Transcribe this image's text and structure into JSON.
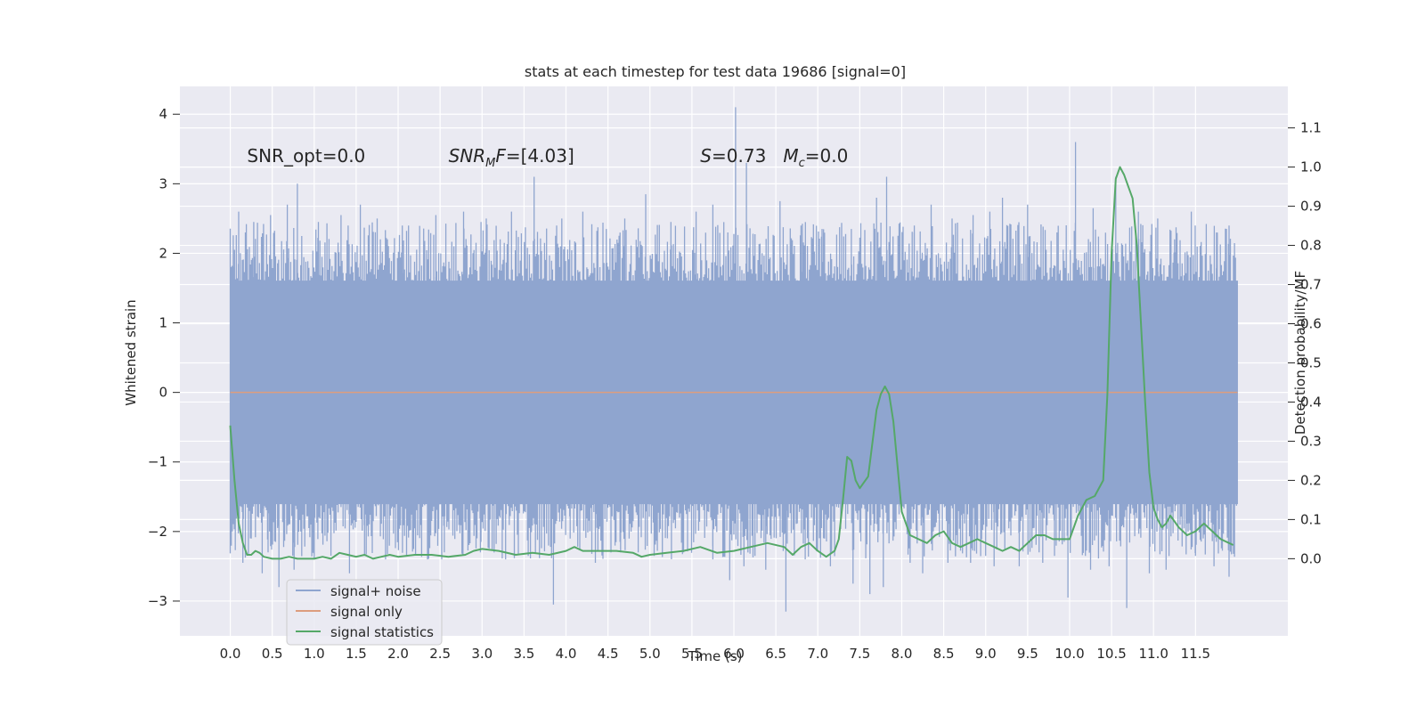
{
  "chart_data": {
    "type": "line",
    "title": "stats at each timestep for test data 19686 [signal=0]",
    "xlabel": "Time (s)",
    "ylabel_left": "Whitened strain",
    "ylabel_right": "Detection probability/MF",
    "xlim": [
      -0.6,
      12.6
    ],
    "ylim_left": [
      -3.5,
      4.4
    ],
    "ylim_right": [
      -0.197,
      1.206
    ],
    "x_ticks": [
      0.0,
      0.5,
      1.0,
      1.5,
      2.0,
      2.5,
      3.0,
      3.5,
      4.0,
      4.5,
      5.0,
      5.5,
      6.0,
      6.5,
      7.0,
      7.5,
      8.0,
      8.5,
      9.0,
      9.5,
      10.0,
      10.5,
      11.0,
      11.5
    ],
    "x_tick_labels": [
      "0.0",
      "0.5",
      "1.0",
      "1.5",
      "2.0",
      "2.5",
      "3.0",
      "3.5",
      "4.0",
      "4.5",
      "5.0",
      "5.5",
      "6.0",
      "6.5",
      "7.0",
      "7.5",
      "8.0",
      "8.5",
      "9.0",
      "9.5",
      "10.0",
      "10.5",
      "11.0",
      "11.5"
    ],
    "y_left_ticks": [
      -3,
      -2,
      -1,
      0,
      1,
      2,
      3,
      4
    ],
    "y_left_tick_labels": [
      "−3",
      "−2",
      "−1",
      "0",
      "1",
      "2",
      "3",
      "4"
    ],
    "y_right_ticks": [
      0.0,
      0.1,
      0.2,
      0.3,
      0.4,
      0.5,
      0.6,
      0.7,
      0.8,
      0.9,
      1.0,
      1.1
    ],
    "y_right_tick_labels": [
      "0.0",
      "0.1",
      "0.2",
      "0.3",
      "0.4",
      "0.5",
      "0.6",
      "0.7",
      "0.8",
      "0.9",
      "1.0",
      "1.1"
    ],
    "grid": true,
    "legend_position": "lower-left",
    "annotations": [
      {
        "text": "SNR_opt=0.0",
        "x": 0.2,
        "y": 3.4
      },
      {
        "text": "SNR_MF=[4.03]",
        "x": 2.6,
        "y": 3.4
      },
      {
        "text": "S=0.73   M_c=0.0",
        "x": 5.6,
        "y": 3.4
      }
    ],
    "series": [
      {
        "name": "signal+ noise",
        "axis": "left",
        "color": "#8fa5cf",
        "x_range": [
          0.0,
          12.0
        ],
        "band_low": -1.6,
        "band_high": 1.6,
        "peaks": [
          {
            "x": 0.05,
            "y": 2.05
          },
          {
            "x": 0.1,
            "y": 2.6
          },
          {
            "x": 0.18,
            "y": 2.3
          },
          {
            "x": 0.28,
            "y": 2.45
          },
          {
            "x": 0.48,
            "y": 2.55
          },
          {
            "x": 0.68,
            "y": 2.7
          },
          {
            "x": 0.8,
            "y": 3.0
          },
          {
            "x": 1.05,
            "y": 2.45
          },
          {
            "x": 1.32,
            "y": 2.55
          },
          {
            "x": 1.55,
            "y": 2.7
          },
          {
            "x": 1.75,
            "y": 2.5
          },
          {
            "x": 2.05,
            "y": 2.4
          },
          {
            "x": 2.45,
            "y": 2.55
          },
          {
            "x": 2.78,
            "y": 2.6
          },
          {
            "x": 3.05,
            "y": 2.5
          },
          {
            "x": 3.35,
            "y": 2.6
          },
          {
            "x": 3.62,
            "y": 3.1
          },
          {
            "x": 3.95,
            "y": 2.5
          },
          {
            "x": 4.2,
            "y": 2.6
          },
          {
            "x": 4.48,
            "y": 2.35
          },
          {
            "x": 4.7,
            "y": 2.5
          },
          {
            "x": 4.95,
            "y": 2.85
          },
          {
            "x": 5.25,
            "y": 2.45
          },
          {
            "x": 5.55,
            "y": 2.6
          },
          {
            "x": 5.75,
            "y": 2.7
          },
          {
            "x": 6.02,
            "y": 4.1
          },
          {
            "x": 6.15,
            "y": 3.3
          },
          {
            "x": 6.55,
            "y": 2.75
          },
          {
            "x": 6.8,
            "y": 2.4
          },
          {
            "x": 7.05,
            "y": 2.35
          },
          {
            "x": 7.4,
            "y": 2.35
          },
          {
            "x": 7.7,
            "y": 2.8
          },
          {
            "x": 7.82,
            "y": 3.1
          },
          {
            "x": 8.15,
            "y": 2.4
          },
          {
            "x": 8.35,
            "y": 2.7
          },
          {
            "x": 8.6,
            "y": 2.5
          },
          {
            "x": 8.85,
            "y": 2.55
          },
          {
            "x": 9.05,
            "y": 2.6
          },
          {
            "x": 9.2,
            "y": 2.8
          },
          {
            "x": 9.5,
            "y": 2.7
          },
          {
            "x": 9.85,
            "y": 2.3
          },
          {
            "x": 10.07,
            "y": 3.6
          },
          {
            "x": 10.28,
            "y": 2.65
          },
          {
            "x": 10.55,
            "y": 3.1
          },
          {
            "x": 10.82,
            "y": 2.6
          },
          {
            "x": 11.05,
            "y": 2.5
          },
          {
            "x": 11.25,
            "y": 2.2
          },
          {
            "x": 11.45,
            "y": 2.6
          },
          {
            "x": 11.75,
            "y": 2.3
          },
          {
            "x": 11.9,
            "y": 2.4
          }
        ],
        "troughs": [
          {
            "x": 0.15,
            "y": -2.45
          },
          {
            "x": 0.25,
            "y": -2.1
          },
          {
            "x": 0.38,
            "y": -2.6
          },
          {
            "x": 0.45,
            "y": -2.3
          },
          {
            "x": 0.58,
            "y": -2.8
          },
          {
            "x": 0.76,
            "y": -2.55
          },
          {
            "x": 1.0,
            "y": -2.4
          },
          {
            "x": 1.42,
            "y": -2.6
          },
          {
            "x": 1.6,
            "y": -2.35
          },
          {
            "x": 1.85,
            "y": -2.4
          },
          {
            "x": 2.35,
            "y": -2.4
          },
          {
            "x": 2.55,
            "y": -2.3
          },
          {
            "x": 2.98,
            "y": -2.3
          },
          {
            "x": 3.28,
            "y": -2.4
          },
          {
            "x": 3.55,
            "y": -2.35
          },
          {
            "x": 3.85,
            "y": -3.05
          },
          {
            "x": 4.05,
            "y": -2.1
          },
          {
            "x": 4.35,
            "y": -2.45
          },
          {
            "x": 4.65,
            "y": -2.3
          },
          {
            "x": 5.05,
            "y": -2.35
          },
          {
            "x": 5.4,
            "y": -2.3
          },
          {
            "x": 5.75,
            "y": -2.4
          },
          {
            "x": 5.95,
            "y": -2.7
          },
          {
            "x": 6.12,
            "y": -2.5
          },
          {
            "x": 6.38,
            "y": -2.55
          },
          {
            "x": 6.62,
            "y": -3.15
          },
          {
            "x": 6.85,
            "y": -2.4
          },
          {
            "x": 7.15,
            "y": -2.5
          },
          {
            "x": 7.42,
            "y": -2.75
          },
          {
            "x": 7.62,
            "y": -2.9
          },
          {
            "x": 7.78,
            "y": -2.8
          },
          {
            "x": 8.1,
            "y": -2.45
          },
          {
            "x": 8.25,
            "y": -2.6
          },
          {
            "x": 8.55,
            "y": -2.45
          },
          {
            "x": 8.82,
            "y": -2.45
          },
          {
            "x": 9.1,
            "y": -2.5
          },
          {
            "x": 9.4,
            "y": -2.5
          },
          {
            "x": 9.68,
            "y": -2.45
          },
          {
            "x": 9.82,
            "y": -2.35
          },
          {
            "x": 9.98,
            "y": -2.95
          },
          {
            "x": 10.25,
            "y": -2.55
          },
          {
            "x": 10.47,
            "y": -2.5
          },
          {
            "x": 10.68,
            "y": -3.1
          },
          {
            "x": 10.95,
            "y": -2.6
          },
          {
            "x": 11.15,
            "y": -2.55
          },
          {
            "x": 11.5,
            "y": -2.35
          },
          {
            "x": 11.72,
            "y": -2.5
          },
          {
            "x": 11.9,
            "y": -2.65
          }
        ]
      },
      {
        "name": "signal only",
        "axis": "left",
        "color": "#dd9d7e",
        "x": [
          0.0,
          12.0
        ],
        "y": [
          0.0,
          0.0
        ]
      },
      {
        "name": "signal statistics",
        "axis": "right",
        "color": "#55a868",
        "x": [
          0.0,
          0.05,
          0.1,
          0.15,
          0.2,
          0.25,
          0.3,
          0.35,
          0.4,
          0.5,
          0.6,
          0.7,
          0.8,
          0.9,
          1.0,
          1.1,
          1.2,
          1.3,
          1.4,
          1.5,
          1.6,
          1.7,
          1.8,
          1.9,
          2.0,
          2.2,
          2.4,
          2.6,
          2.8,
          2.9,
          3.0,
          3.2,
          3.4,
          3.6,
          3.8,
          4.0,
          4.1,
          4.2,
          4.4,
          4.6,
          4.8,
          4.9,
          5.0,
          5.2,
          5.4,
          5.6,
          5.8,
          6.0,
          6.2,
          6.4,
          6.6,
          6.7,
          6.8,
          6.9,
          7.0,
          7.1,
          7.2,
          7.25,
          7.3,
          7.35,
          7.4,
          7.45,
          7.5,
          7.6,
          7.7,
          7.75,
          7.8,
          7.85,
          7.9,
          8.0,
          8.1,
          8.2,
          8.3,
          8.4,
          8.5,
          8.6,
          8.7,
          8.8,
          8.9,
          9.0,
          9.1,
          9.2,
          9.3,
          9.4,
          9.5,
          9.6,
          9.7,
          9.8,
          9.9,
          10.0,
          10.1,
          10.2,
          10.3,
          10.4,
          10.45,
          10.5,
          10.55,
          10.6,
          10.65,
          10.7,
          10.75,
          10.8,
          10.85,
          10.9,
          10.95,
          11.0,
          11.05,
          11.1,
          11.15,
          11.2,
          11.3,
          11.4,
          11.5,
          11.6,
          11.7,
          11.8,
          11.9,
          11.95
        ],
        "y": [
          0.34,
          0.2,
          0.09,
          0.04,
          0.01,
          0.01,
          0.02,
          0.015,
          0.005,
          0.0,
          0.0,
          0.005,
          0.0,
          0.0,
          0.0,
          0.005,
          0.0,
          0.015,
          0.01,
          0.005,
          0.01,
          0.0,
          0.005,
          0.01,
          0.005,
          0.01,
          0.01,
          0.005,
          0.01,
          0.02,
          0.025,
          0.02,
          0.01,
          0.015,
          0.01,
          0.02,
          0.03,
          0.02,
          0.02,
          0.02,
          0.015,
          0.005,
          0.01,
          0.015,
          0.02,
          0.03,
          0.015,
          0.02,
          0.03,
          0.04,
          0.03,
          0.01,
          0.03,
          0.04,
          0.02,
          0.005,
          0.02,
          0.05,
          0.15,
          0.26,
          0.25,
          0.2,
          0.18,
          0.21,
          0.38,
          0.42,
          0.44,
          0.42,
          0.35,
          0.12,
          0.06,
          0.05,
          0.04,
          0.06,
          0.07,
          0.04,
          0.03,
          0.04,
          0.05,
          0.04,
          0.03,
          0.02,
          0.03,
          0.02,
          0.04,
          0.06,
          0.06,
          0.05,
          0.05,
          0.05,
          0.11,
          0.15,
          0.16,
          0.2,
          0.42,
          0.78,
          0.97,
          1.0,
          0.98,
          0.95,
          0.92,
          0.8,
          0.6,
          0.4,
          0.22,
          0.13,
          0.1,
          0.08,
          0.09,
          0.11,
          0.08,
          0.06,
          0.07,
          0.09,
          0.07,
          0.05,
          0.04,
          0.035
        ]
      }
    ]
  }
}
